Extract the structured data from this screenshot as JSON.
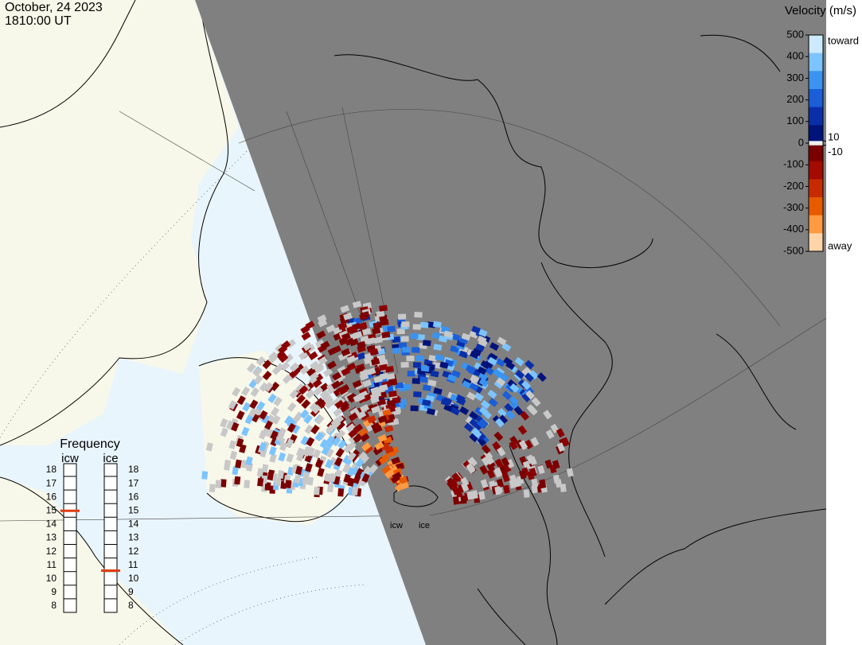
{
  "header": {
    "date": "October, 24 2023",
    "time": "1810:00 UT"
  },
  "colorbar": {
    "title": "Velocity (m/s)",
    "ylim": [
      -500,
      500
    ],
    "ticks": [
      500,
      400,
      300,
      200,
      100,
      0,
      -100,
      -200,
      -300,
      -400,
      -500
    ],
    "inner_ticks": [
      10,
      -10
    ],
    "top_label": "toward",
    "bottom_label": "away",
    "colors": [
      "#cde9ff",
      "#7cc4ff",
      "#3a93f0",
      "#1a5ed8",
      "#0a2ea8",
      "#00137a",
      "#7a0000",
      "#a30a00",
      "#c82a00",
      "#e85a00",
      "#ff9a40",
      "#ffd4a8"
    ]
  },
  "frequency": {
    "title": "Frequency",
    "ylim": [
      8,
      18
    ],
    "ticks": [
      8,
      9,
      10,
      11,
      12,
      13,
      14,
      15,
      16,
      17,
      18
    ],
    "radars": [
      {
        "name": "icw",
        "value": 15
      },
      {
        "name": "ice",
        "value": 10.6
      }
    ]
  },
  "radar_labels": [
    "icw",
    "ice"
  ]
}
